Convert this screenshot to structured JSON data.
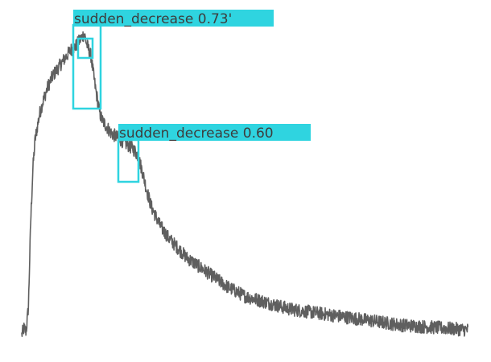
{
  "chart_data": {
    "type": "line",
    "title": "",
    "xlabel": "",
    "ylabel": "",
    "grid": false,
    "legend": "none",
    "xlim": [
      0,
      100
    ],
    "ylim": [
      0,
      100
    ],
    "series": [
      {
        "x": [
          0,
          0.5,
          1.0,
          1.5,
          2.0,
          2.5,
          3.0,
          4.0,
          5.0,
          6.0,
          7.0,
          8.0,
          9.0,
          10.0,
          11.0,
          12.0,
          13.0,
          13.5,
          14.0,
          14.5,
          15.0,
          15.5,
          16.0,
          16.5,
          17.0,
          17.5,
          18.0,
          18.5,
          19.0,
          19.5,
          20.0,
          21.0,
          22.0,
          23.0,
          24.0,
          25.0,
          26.0,
          27.0,
          28.0,
          29.0,
          30.0,
          31.0,
          32.0,
          33.0,
          35.0,
          37.0,
          40.0,
          43.0,
          46.0,
          50.0,
          55.0,
          60.0,
          65.0,
          70.0,
          75.0,
          80.0,
          85.0,
          90.0,
          95.0,
          100.0
        ],
        "y": [
          3,
          5,
          4,
          12,
          38,
          55,
          64,
          72,
          77,
          81,
          84,
          86,
          88,
          90,
          92,
          93,
          95,
          96,
          97,
          94,
          92,
          90,
          85,
          80,
          76,
          72,
          70,
          69,
          68,
          67,
          66,
          65,
          64,
          63,
          62,
          61,
          59,
          54,
          48,
          43,
          40,
          37,
          35,
          33,
          30,
          27,
          24,
          21,
          18,
          15,
          13,
          11,
          10,
          9,
          8,
          7,
          6,
          5.5,
          5,
          4.5
        ]
      }
    ]
  },
  "colors": {
    "line": "#5f5f5f",
    "detection": "#2fd4e0",
    "label_text": "#3d3d3d"
  },
  "detections": [
    {
      "label": "sudden_decrease 0.73'"
    },
    {
      "label": ""
    },
    {
      "label": "sudden_decrease 0.60"
    }
  ]
}
